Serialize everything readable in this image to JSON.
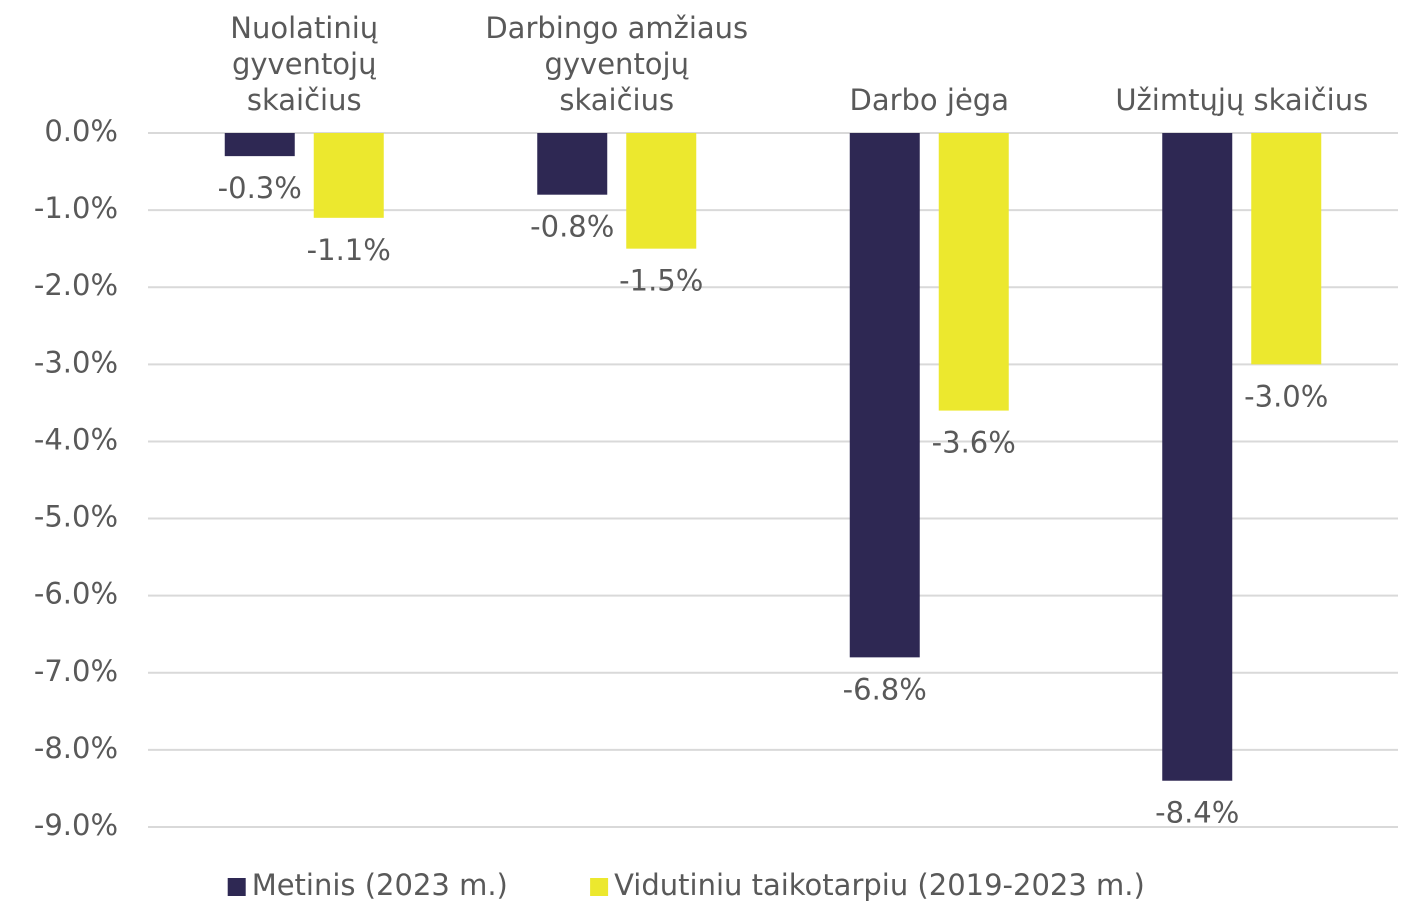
{
  "chart_data": {
    "type": "bar",
    "categories": [
      "Nuolatinių\ngyventojų\nskaičius",
      "Darbingo amžiaus\ngyventojų\nskaičius",
      "Darbo jėga",
      "Užimtųjų skaičius"
    ],
    "series": [
      {
        "name": "Metinis (2023 m.)",
        "color": "#2e2853",
        "values": [
          -0.3,
          -0.8,
          -6.8,
          -8.4
        ],
        "value_labels": [
          "-0.3%",
          "-0.8%",
          "-6.8%",
          "-8.4%"
        ]
      },
      {
        "name": "Vidutiniu taikotarpiu (2019-2023 m.)",
        "color": "#ece82e",
        "values": [
          -1.1,
          -1.5,
          -3.6,
          -3.0
        ],
        "value_labels": [
          "-1.1%",
          "-1.5%",
          "-3.6%",
          "-3.0%"
        ]
      }
    ],
    "ylim": [
      -9,
      0
    ],
    "yticks": [
      {
        "value": 0,
        "label": "0.0%"
      },
      {
        "value": -1,
        "label": "-1.0%"
      },
      {
        "value": -2,
        "label": "-2.0%"
      },
      {
        "value": -3,
        "label": "-3.0%"
      },
      {
        "value": -4,
        "label": "-4.0%"
      },
      {
        "value": -5,
        "label": "-5.0%"
      },
      {
        "value": -6,
        "label": "-6.0%"
      },
      {
        "value": -7,
        "label": "-7.0%"
      },
      {
        "value": -8,
        "label": "-8.0%"
      },
      {
        "value": -9,
        "label": "-9.0%"
      }
    ],
    "grid": true,
    "legend": "bottom"
  }
}
